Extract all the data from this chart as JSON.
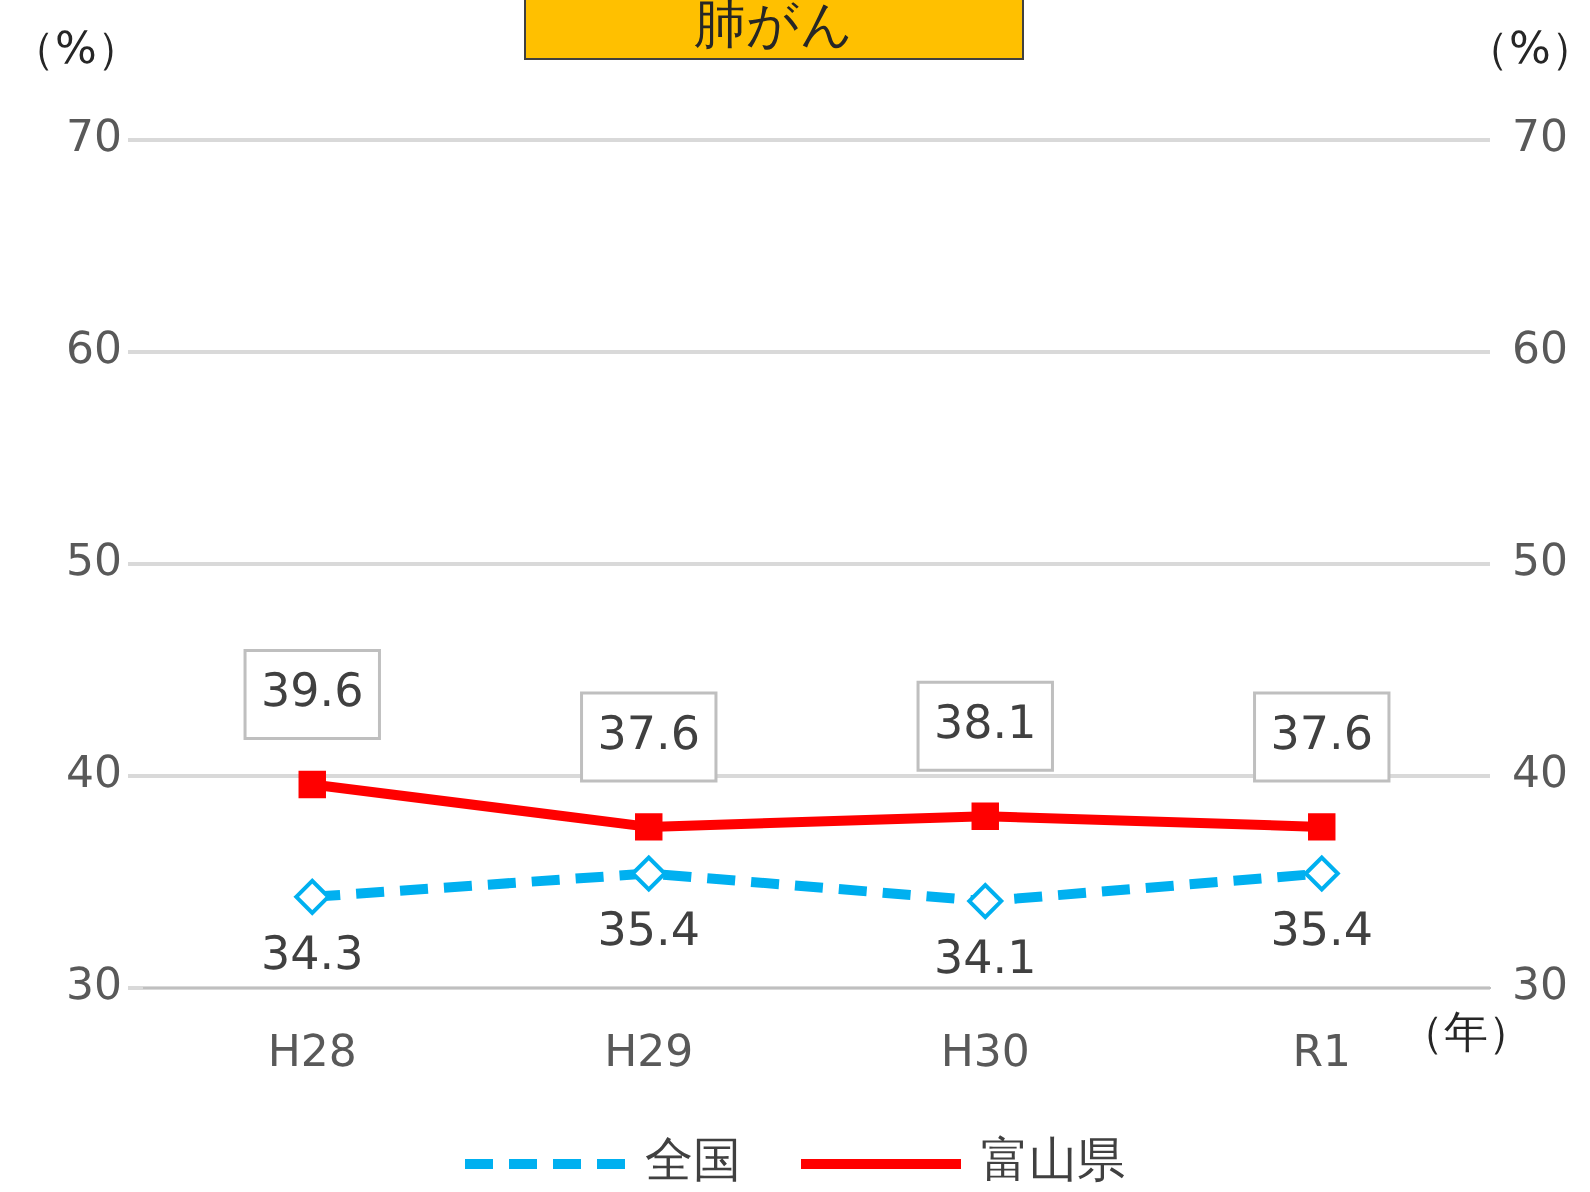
{
  "chart_data": {
    "type": "line",
    "title": "肺がん",
    "ylabel": "（%）",
    "y2label": "（%）",
    "xlabel": "（年）",
    "categories": [
      "H28",
      "H29",
      "H30",
      "R1"
    ],
    "series": [
      {
        "name": "全国",
        "color": "#00b0f0",
        "values": [
          34.3,
          35.4,
          34.1,
          35.4
        ],
        "marker": "diamond",
        "line_style": "dashed"
      },
      {
        "name": "富山県",
        "color": "#ff0000",
        "values": [
          39.6,
          37.6,
          38.1,
          37.6
        ],
        "marker": "square",
        "line_style": "solid"
      }
    ],
    "ylim": [
      30,
      70
    ],
    "yticks": [
      30,
      40,
      50,
      60,
      70
    ],
    "y2lim": [
      30,
      70
    ],
    "y2ticks": [
      30,
      40,
      50,
      60,
      70
    ],
    "grid": "y",
    "legend": "bottom",
    "data_labels": true
  }
}
